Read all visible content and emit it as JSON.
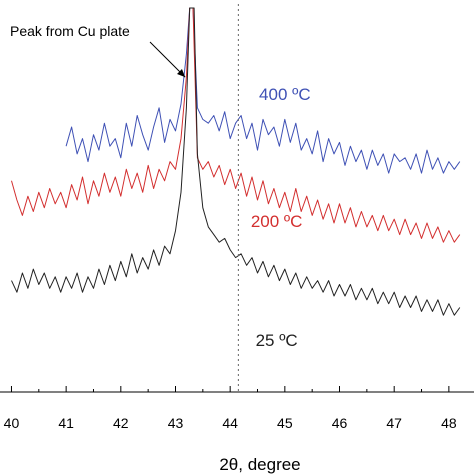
{
  "chart_data": {
    "type": "line",
    "title": "",
    "xlabel": "2θ, degree",
    "ylabel": "",
    "xlim": [
      40.0,
      48.2
    ],
    "ylim": [
      0,
      100
    ],
    "grid": false,
    "x_ticks": [
      40,
      41,
      42,
      43,
      44,
      45,
      46,
      47,
      48
    ],
    "x_tick_labels": [
      "40",
      "41",
      "42",
      "43",
      "44",
      "45",
      "46",
      "47",
      "48"
    ],
    "reference_line": {
      "x": 44.15,
      "style": "dashed"
    },
    "annotation": {
      "text": "Peak from Cu plate",
      "points_to": {
        "x": 43.25,
        "y": 82
      },
      "text_at": {
        "x": 40.15,
        "y": 92
      }
    },
    "series": [
      {
        "name": "400 ºC",
        "color": "#3f51b5",
        "points": [
          [
            41.0,
            64
          ],
          [
            41.1,
            69
          ],
          [
            41.2,
            62
          ],
          [
            41.3,
            66
          ],
          [
            41.4,
            60
          ],
          [
            41.5,
            67
          ],
          [
            41.6,
            63
          ],
          [
            41.7,
            70
          ],
          [
            41.8,
            64
          ],
          [
            41.9,
            66
          ],
          [
            42.0,
            61
          ],
          [
            42.1,
            70
          ],
          [
            42.2,
            64
          ],
          [
            42.3,
            72
          ],
          [
            42.4,
            67
          ],
          [
            42.5,
            63
          ],
          [
            42.6,
            69
          ],
          [
            42.7,
            74
          ],
          [
            42.8,
            65
          ],
          [
            42.9,
            71
          ],
          [
            43.0,
            68
          ],
          [
            43.1,
            75
          ],
          [
            43.2,
            88
          ],
          [
            43.26,
            100
          ],
          [
            43.32,
            100
          ],
          [
            43.4,
            74
          ],
          [
            43.5,
            71
          ],
          [
            43.6,
            70
          ],
          [
            43.7,
            72
          ],
          [
            43.8,
            68
          ],
          [
            43.9,
            73
          ],
          [
            44.0,
            66
          ],
          [
            44.1,
            70
          ],
          [
            44.2,
            72
          ],
          [
            44.3,
            66
          ],
          [
            44.4,
            70
          ],
          [
            44.5,
            63
          ],
          [
            44.6,
            71
          ],
          [
            44.7,
            67
          ],
          [
            44.8,
            69
          ],
          [
            44.9,
            64
          ],
          [
            45.0,
            71
          ],
          [
            45.1,
            65
          ],
          [
            45.2,
            70
          ],
          [
            45.3,
            63
          ],
          [
            45.4,
            66
          ],
          [
            45.5,
            62
          ],
          [
            45.6,
            68
          ],
          [
            45.7,
            60
          ],
          [
            45.8,
            66
          ],
          [
            45.9,
            62
          ],
          [
            46.0,
            65
          ],
          [
            46.1,
            59
          ],
          [
            46.2,
            64
          ],
          [
            46.3,
            60
          ],
          [
            46.4,
            63
          ],
          [
            46.5,
            58
          ],
          [
            46.6,
            63
          ],
          [
            46.7,
            59
          ],
          [
            46.8,
            62
          ],
          [
            46.9,
            57
          ],
          [
            47.0,
            62
          ],
          [
            47.1,
            60
          ],
          [
            47.2,
            61
          ],
          [
            47.3,
            58
          ],
          [
            47.4,
            62
          ],
          [
            47.5,
            57
          ],
          [
            47.6,
            63
          ],
          [
            47.7,
            58
          ],
          [
            47.8,
            61
          ],
          [
            47.9,
            57
          ],
          [
            48.0,
            60
          ],
          [
            48.1,
            58
          ],
          [
            48.2,
            60
          ]
        ]
      },
      {
        "name": "200 ºC",
        "color": "#d32f2f",
        "points": [
          [
            40.0,
            55
          ],
          [
            40.1,
            50
          ],
          [
            40.2,
            46
          ],
          [
            40.3,
            51
          ],
          [
            40.4,
            47
          ],
          [
            40.5,
            52
          ],
          [
            40.6,
            48
          ],
          [
            40.7,
            53
          ],
          [
            40.8,
            49
          ],
          [
            40.9,
            52
          ],
          [
            41.0,
            48
          ],
          [
            41.1,
            54
          ],
          [
            41.2,
            50
          ],
          [
            41.3,
            56
          ],
          [
            41.4,
            49
          ],
          [
            41.5,
            55
          ],
          [
            41.6,
            51
          ],
          [
            41.7,
            57
          ],
          [
            41.8,
            52
          ],
          [
            41.9,
            56
          ],
          [
            42.0,
            51
          ],
          [
            42.1,
            58
          ],
          [
            42.2,
            53
          ],
          [
            42.3,
            57
          ],
          [
            42.4,
            52
          ],
          [
            42.5,
            59
          ],
          [
            42.6,
            53
          ],
          [
            42.7,
            58
          ],
          [
            42.8,
            55
          ],
          [
            42.9,
            60
          ],
          [
            43.0,
            58
          ],
          [
            43.1,
            66
          ],
          [
            43.2,
            82
          ],
          [
            43.26,
            100
          ],
          [
            43.32,
            100
          ],
          [
            43.4,
            61
          ],
          [
            43.5,
            58
          ],
          [
            43.6,
            60
          ],
          [
            43.7,
            56
          ],
          [
            43.8,
            59
          ],
          [
            43.9,
            54
          ],
          [
            44.0,
            58
          ],
          [
            44.1,
            53
          ],
          [
            44.2,
            57
          ],
          [
            44.3,
            51
          ],
          [
            44.4,
            56
          ],
          [
            44.5,
            50
          ],
          [
            44.6,
            55
          ],
          [
            44.7,
            49
          ],
          [
            44.8,
            53
          ],
          [
            44.9,
            48
          ],
          [
            45.0,
            52
          ],
          [
            45.1,
            47
          ],
          [
            45.2,
            53
          ],
          [
            45.3,
            47
          ],
          [
            45.4,
            51
          ],
          [
            45.5,
            46
          ],
          [
            45.6,
            50
          ],
          [
            45.7,
            45
          ],
          [
            45.8,
            49
          ],
          [
            45.9,
            44
          ],
          [
            46.0,
            49
          ],
          [
            46.1,
            44
          ],
          [
            46.2,
            48
          ],
          [
            46.3,
            43
          ],
          [
            46.4,
            47
          ],
          [
            46.5,
            43
          ],
          [
            46.6,
            46
          ],
          [
            46.7,
            42
          ],
          [
            46.8,
            46
          ],
          [
            46.9,
            42
          ],
          [
            47.0,
            45
          ],
          [
            47.1,
            41
          ],
          [
            47.2,
            45
          ],
          [
            47.3,
            41
          ],
          [
            47.4,
            44
          ],
          [
            47.5,
            40
          ],
          [
            47.6,
            44
          ],
          [
            47.7,
            40
          ],
          [
            47.8,
            43
          ],
          [
            47.9,
            39
          ],
          [
            48.0,
            42
          ],
          [
            48.1,
            39
          ],
          [
            48.2,
            41
          ]
        ]
      },
      {
        "name": "25 ºC",
        "color": "#222222",
        "points": [
          [
            40.0,
            29
          ],
          [
            40.1,
            26
          ],
          [
            40.2,
            31
          ],
          [
            40.3,
            27
          ],
          [
            40.4,
            32
          ],
          [
            40.5,
            28
          ],
          [
            40.6,
            31
          ],
          [
            40.7,
            27
          ],
          [
            40.8,
            30
          ],
          [
            40.9,
            26
          ],
          [
            41.0,
            30
          ],
          [
            41.1,
            27
          ],
          [
            41.2,
            31
          ],
          [
            41.3,
            26
          ],
          [
            41.4,
            30
          ],
          [
            41.5,
            27
          ],
          [
            41.6,
            32
          ],
          [
            41.7,
            28
          ],
          [
            41.8,
            33
          ],
          [
            41.9,
            29
          ],
          [
            42.0,
            34
          ],
          [
            42.1,
            30
          ],
          [
            42.2,
            36
          ],
          [
            42.3,
            31
          ],
          [
            42.4,
            35
          ],
          [
            42.5,
            32
          ],
          [
            42.6,
            37
          ],
          [
            42.7,
            33
          ],
          [
            42.8,
            38
          ],
          [
            42.9,
            36
          ],
          [
            43.0,
            42
          ],
          [
            43.1,
            52
          ],
          [
            43.2,
            74
          ],
          [
            43.26,
            100
          ],
          [
            43.34,
            100
          ],
          [
            43.4,
            62
          ],
          [
            43.5,
            48
          ],
          [
            43.6,
            43
          ],
          [
            43.7,
            41
          ],
          [
            43.8,
            39
          ],
          [
            43.9,
            40
          ],
          [
            44.0,
            37
          ],
          [
            44.1,
            35
          ],
          [
            44.2,
            36
          ],
          [
            44.3,
            33
          ],
          [
            44.4,
            35
          ],
          [
            44.5,
            31
          ],
          [
            44.6,
            34
          ],
          [
            44.7,
            30
          ],
          [
            44.8,
            33
          ],
          [
            44.9,
            29
          ],
          [
            45.0,
            32
          ],
          [
            45.1,
            28
          ],
          [
            45.2,
            31
          ],
          [
            45.3,
            27
          ],
          [
            45.4,
            30
          ],
          [
            45.5,
            27
          ],
          [
            45.6,
            29
          ],
          [
            45.7,
            26
          ],
          [
            45.8,
            29
          ],
          [
            45.9,
            25
          ],
          [
            46.0,
            28
          ],
          [
            46.1,
            25
          ],
          [
            46.2,
            28
          ],
          [
            46.3,
            24
          ],
          [
            46.4,
            27
          ],
          [
            46.5,
            24
          ],
          [
            46.6,
            27
          ],
          [
            46.7,
            23
          ],
          [
            46.8,
            26
          ],
          [
            46.9,
            23
          ],
          [
            47.0,
            26
          ],
          [
            47.1,
            22
          ],
          [
            47.2,
            25
          ],
          [
            47.3,
            22
          ],
          [
            47.4,
            25
          ],
          [
            47.5,
            21
          ],
          [
            47.6,
            24
          ],
          [
            47.7,
            21
          ],
          [
            47.8,
            24
          ],
          [
            47.9,
            20
          ],
          [
            48.0,
            23
          ],
          [
            48.1,
            20
          ],
          [
            48.2,
            22
          ]
        ]
      }
    ]
  }
}
